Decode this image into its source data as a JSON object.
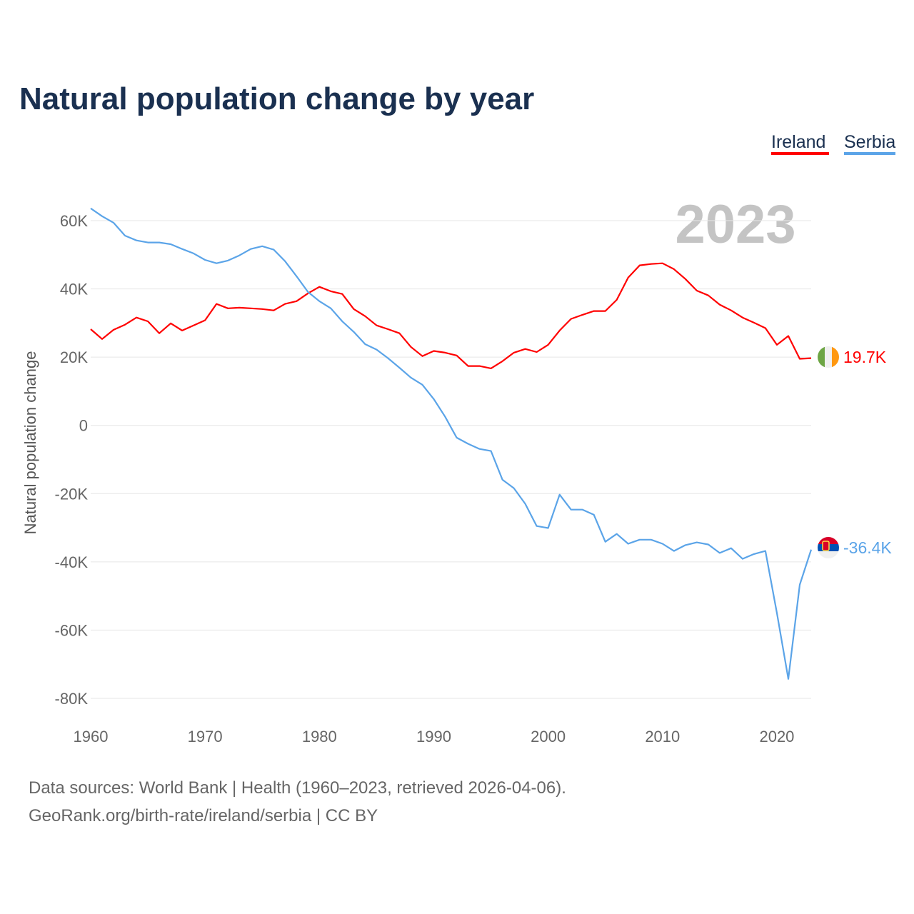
{
  "chart_data": {
    "type": "line",
    "title": "Natural population change by year",
    "xlabel": "",
    "ylabel": "Natural population change",
    "xlim": [
      1960,
      2023
    ],
    "ylim": [
      -80000,
      60000
    ],
    "y_ticks": [
      60000,
      40000,
      20000,
      0,
      -20000,
      -40000,
      -60000,
      -80000
    ],
    "y_tick_labels": [
      "60K",
      "40K",
      "20K",
      "0",
      "-20K",
      "-40K",
      "-60K",
      "-80K"
    ],
    "x_ticks": [
      1960,
      1970,
      1980,
      1990,
      2000,
      2010,
      2020
    ],
    "x_tick_labels": [
      "1960",
      "1970",
      "1980",
      "1990",
      "2000",
      "2010",
      "2020"
    ],
    "grid": true,
    "legend_placement": "top-right",
    "current_year": "2023",
    "x_start": 1960,
    "series": [
      {
        "name": "Ireland",
        "color": "#ff0000",
        "end_label": "19.7K",
        "flag": "ireland-flag",
        "values": [
          28200,
          25300,
          28000,
          29500,
          31600,
          30500,
          27000,
          29900,
          27800,
          29300,
          30800,
          35600,
          34300,
          34500,
          34300,
          34100,
          33700,
          35600,
          36400,
          38700,
          40600,
          39300,
          38500,
          34100,
          32000,
          29300,
          28200,
          27000,
          23000,
          20300,
          21800,
          21300,
          20500,
          17400,
          17400,
          16700,
          18800,
          21300,
          22400,
          21500,
          23600,
          27800,
          31200,
          32400,
          33500,
          33500,
          36800,
          43300,
          46900,
          47300,
          47500,
          45800,
          42900,
          39500,
          38100,
          35400,
          33700,
          31600,
          30100,
          28500,
          23600,
          26200,
          19500,
          19700
        ]
      },
      {
        "name": "Serbia",
        "color": "#5ba4e8",
        "end_label": "-36.4K",
        "flag": "serbia-flag",
        "values": [
          63600,
          61300,
          59400,
          55600,
          54200,
          53600,
          53600,
          53100,
          51700,
          50400,
          48500,
          47500,
          48300,
          49800,
          51700,
          52500,
          51500,
          48100,
          43700,
          39100,
          36400,
          34300,
          30500,
          27400,
          23800,
          22200,
          19700,
          16900,
          14000,
          11900,
          7700,
          2500,
          -3600,
          -5400,
          -6900,
          -7500,
          -15900,
          -18400,
          -23000,
          -29500,
          -30100,
          -20300,
          -24700,
          -24700,
          -26200,
          -34100,
          -31800,
          -34700,
          -33500,
          -33500,
          -34700,
          -36800,
          -35100,
          -34300,
          -34900,
          -37400,
          -36000,
          -39100,
          -37700,
          -36800,
          -55000,
          -74300,
          -46700,
          -36400
        ]
      }
    ]
  },
  "footer": {
    "line1": "Data sources: World Bank | Health (1960–2023, retrieved 2026-04-06).",
    "line2": "GeoRank.org/birth-rate/ireland/serbia | CC BY"
  }
}
